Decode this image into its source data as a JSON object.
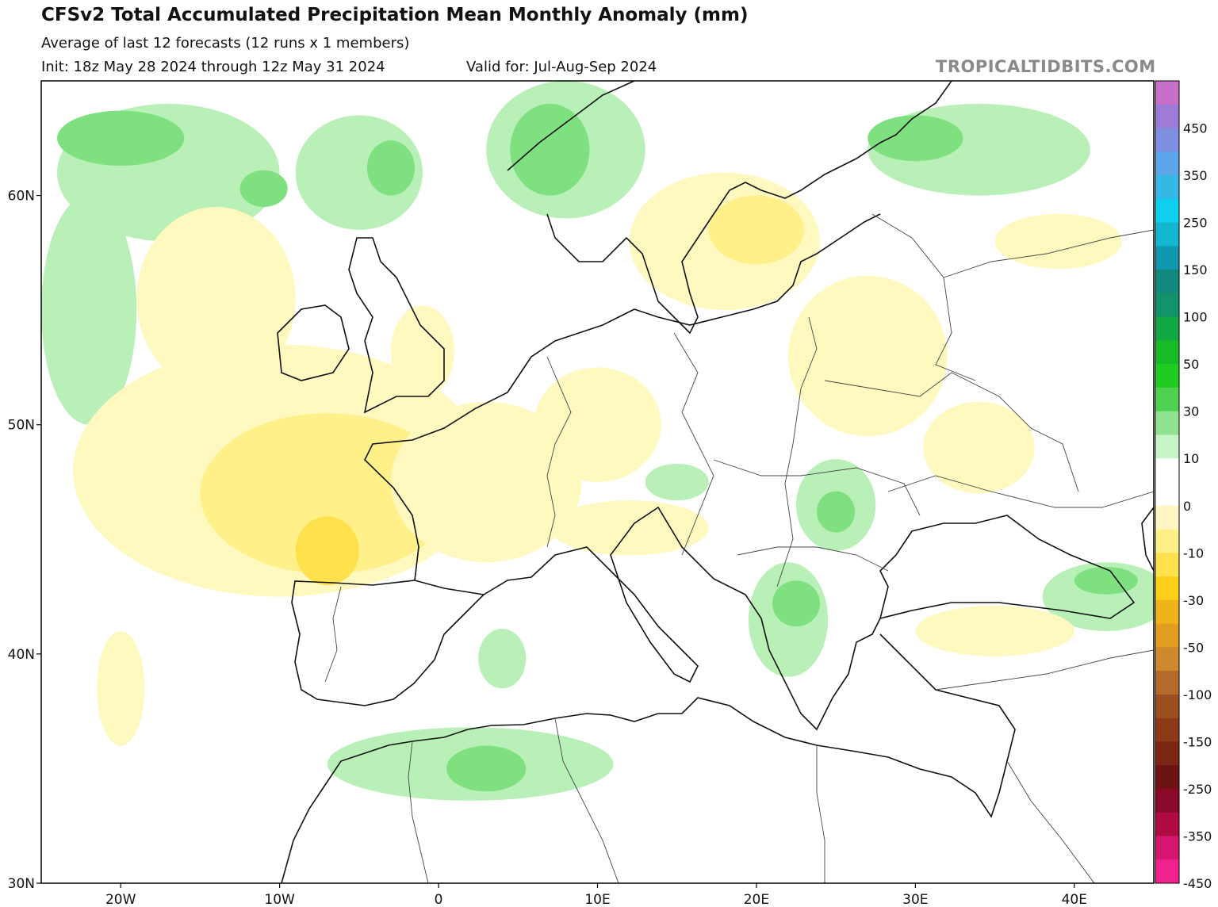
{
  "header": {
    "title": "CFSv2 Total Accumulated Precipitation Mean Monthly Anomaly (mm)",
    "subtitle": "Average of last 12 forecasts (12 runs x 1 members)",
    "init": "Init: 18z May 28 2024 through 12z May 31 2024",
    "valid": "Valid for: Jul-Aug-Sep 2024",
    "brand": "TROPICALTIDBITS.COM"
  },
  "map": {
    "region": "Europe",
    "lon_range": [
      -25,
      45
    ],
    "lat_range": [
      30,
      65
    ],
    "lon_ticks": [
      {
        "value": -20,
        "label": "20W"
      },
      {
        "value": -10,
        "label": "10W"
      },
      {
        "value": 0,
        "label": "0"
      },
      {
        "value": 10,
        "label": "10E"
      },
      {
        "value": 20,
        "label": "20E"
      },
      {
        "value": 30,
        "label": "30E"
      },
      {
        "value": 40,
        "label": "40E"
      }
    ],
    "lat_ticks": [
      {
        "value": 60,
        "label": "60N"
      },
      {
        "value": 50,
        "label": "50N"
      },
      {
        "value": 40,
        "label": "40N"
      },
      {
        "value": 30,
        "label": "30N"
      }
    ],
    "anomaly_colors": {
      "wet_10": "#b8f0b8",
      "wet_30": "#7fe07f",
      "wet_50": "#3cc33c",
      "dry_10": "#fff8bf",
      "dry_30": "#fff08a",
      "dry_50": "#ffe14d"
    },
    "anomaly_regions": [
      {
        "level": "wet_10",
        "center": [
          -17,
          61
        ],
        "radius": [
          7,
          3
        ]
      },
      {
        "level": "wet_30",
        "center": [
          -20,
          62.5
        ],
        "radius": [
          4,
          1.2
        ]
      },
      {
        "level": "wet_10",
        "center": [
          -22,
          55
        ],
        "radius": [
          3,
          5
        ]
      },
      {
        "level": "wet_10",
        "center": [
          -5,
          61
        ],
        "radius": [
          4,
          2.5
        ]
      },
      {
        "level": "wet_30",
        "center": [
          -3,
          61.2
        ],
        "radius": [
          1.5,
          1.2
        ]
      },
      {
        "level": "wet_30",
        "center": [
          -11,
          60.3
        ],
        "radius": [
          1.5,
          0.8
        ]
      },
      {
        "level": "wet_10",
        "center": [
          8,
          62
        ],
        "radius": [
          5,
          3
        ]
      },
      {
        "level": "wet_30",
        "center": [
          7,
          62
        ],
        "radius": [
          2.5,
          2
        ]
      },
      {
        "level": "wet_10",
        "center": [
          34,
          62
        ],
        "radius": [
          7,
          2
        ]
      },
      {
        "level": "wet_30",
        "center": [
          30,
          62.5
        ],
        "radius": [
          3,
          1
        ]
      },
      {
        "level": "wet_10",
        "center": [
          15,
          47.5
        ],
        "radius": [
          2,
          0.8
        ]
      },
      {
        "level": "wet_10",
        "center": [
          25,
          46.5
        ],
        "radius": [
          2.5,
          2
        ]
      },
      {
        "level": "wet_30",
        "center": [
          25,
          46.2
        ],
        "radius": [
          1.2,
          0.9
        ]
      },
      {
        "level": "wet_10",
        "center": [
          22,
          41.5
        ],
        "radius": [
          2.5,
          2.5
        ]
      },
      {
        "level": "wet_30",
        "center": [
          22.5,
          42.2
        ],
        "radius": [
          1.5,
          1
        ]
      },
      {
        "level": "wet_10",
        "center": [
          42,
          42.5
        ],
        "radius": [
          4,
          1.5
        ]
      },
      {
        "level": "wet_30",
        "center": [
          42,
          43.2
        ],
        "radius": [
          2,
          0.6
        ]
      },
      {
        "level": "wet_10",
        "center": [
          2,
          35.2
        ],
        "radius": [
          9,
          1.6
        ]
      },
      {
        "level": "wet_30",
        "center": [
          3,
          35
        ],
        "radius": [
          2.5,
          1
        ]
      },
      {
        "level": "wet_10",
        "center": [
          4,
          39.8
        ],
        "radius": [
          1.5,
          1.3
        ]
      },
      {
        "level": "dry_10",
        "center": [
          -14,
          55.5
        ],
        "radius": [
          5,
          4
        ]
      },
      {
        "level": "dry_10",
        "center": [
          -10,
          48
        ],
        "radius": [
          13,
          5.5
        ]
      },
      {
        "level": "dry_30",
        "center": [
          -7,
          47
        ],
        "radius": [
          8,
          3.5
        ]
      },
      {
        "level": "dry_50",
        "center": [
          -7,
          44.5
        ],
        "radius": [
          2,
          1.5
        ]
      },
      {
        "level": "dry_10",
        "center": [
          3,
          47.5
        ],
        "radius": [
          6,
          3.5
        ]
      },
      {
        "level": "dry_10",
        "center": [
          12,
          45.5
        ],
        "radius": [
          5,
          1.2
        ]
      },
      {
        "level": "dry_10",
        "center": [
          -1,
          53.2
        ],
        "radius": [
          2,
          2
        ]
      },
      {
        "level": "dry_10",
        "center": [
          18,
          58
        ],
        "radius": [
          6,
          3
        ]
      },
      {
        "level": "dry_30",
        "center": [
          20,
          58.5
        ],
        "radius": [
          3,
          1.5
        ]
      },
      {
        "level": "dry_10",
        "center": [
          27,
          53
        ],
        "radius": [
          5,
          3.5
        ]
      },
      {
        "level": "dry_10",
        "center": [
          34,
          49
        ],
        "radius": [
          3.5,
          2
        ]
      },
      {
        "level": "dry_10",
        "center": [
          35,
          41
        ],
        "radius": [
          5,
          1.1
        ]
      },
      {
        "level": "dry_10",
        "center": [
          39,
          58
        ],
        "radius": [
          4,
          1.2
        ]
      },
      {
        "level": "dry_10",
        "center": [
          -20,
          38.5
        ],
        "radius": [
          1.5,
          2.5
        ]
      },
      {
        "level": "dry_10",
        "center": [
          10,
          50
        ],
        "radius": [
          4,
          2.5
        ]
      }
    ]
  },
  "colorbar": {
    "labels": [
      "450",
      "350",
      "250",
      "150",
      "100",
      "50",
      "30",
      "10",
      "0",
      "-10",
      "-30",
      "-50",
      "-100",
      "-150",
      "-250",
      "-350",
      "-450"
    ],
    "colors": [
      "#c86fc8",
      "#9e7bd6",
      "#7d8fe0",
      "#5ca6ea",
      "#34b8e6",
      "#10cfee",
      "#12b6cf",
      "#1098b0",
      "#138a7e",
      "#12936b",
      "#14a746",
      "#18bb27",
      "#20cc20",
      "#4fd14f",
      "#8fe28f",
      "#c6f5c6",
      "#ffffff",
      "#ffffff",
      "#fff6c4",
      "#fff08a",
      "#ffe14d",
      "#ffd01a",
      "#f0b41a",
      "#e29e21",
      "#cd8a2c",
      "#b36b29",
      "#9e4f22",
      "#8c3a18",
      "#7e2614",
      "#6e1313",
      "#8b0a2a",
      "#b00a45",
      "#d6166e",
      "#f0238e"
    ]
  }
}
